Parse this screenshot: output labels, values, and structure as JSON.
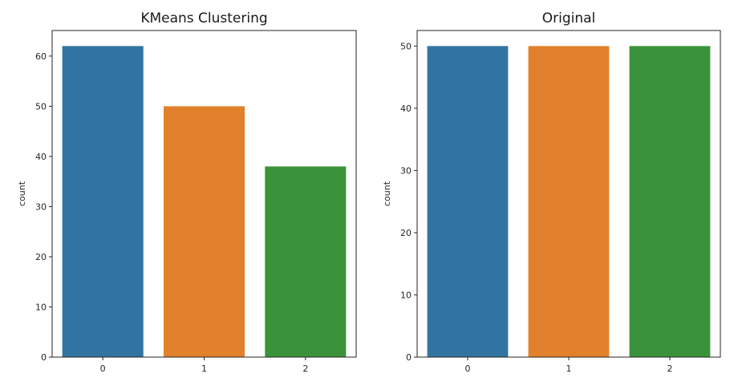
{
  "chart_data": [
    {
      "type": "bar",
      "title": "KMeans Clustering",
      "xlabel": "",
      "ylabel": "count",
      "categories": [
        "0",
        "1",
        "2"
      ],
      "values": [
        62,
        50,
        38
      ],
      "colors": [
        "#3274a1",
        "#e1812c",
        "#3a923a"
      ],
      "ylim": [
        0,
        65.1
      ],
      "yticks": [
        0,
        10,
        20,
        30,
        40,
        50,
        60
      ],
      "grid": false
    },
    {
      "type": "bar",
      "title": "Original",
      "xlabel": "",
      "ylabel": "count",
      "categories": [
        "0",
        "1",
        "2"
      ],
      "values": [
        50,
        50,
        50
      ],
      "colors": [
        "#3274a1",
        "#e1812c",
        "#3a923a"
      ],
      "ylim": [
        0,
        52.5
      ],
      "yticks": [
        0,
        10,
        20,
        30,
        40,
        50
      ],
      "grid": false
    }
  ]
}
